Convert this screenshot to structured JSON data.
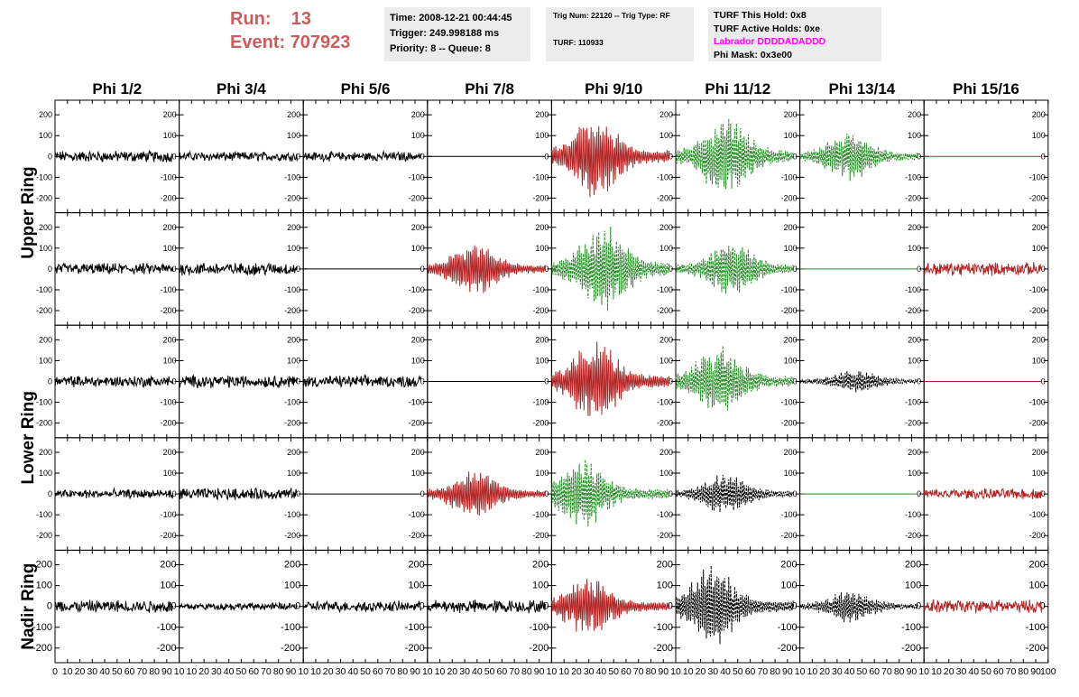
{
  "run_label": "Run:",
  "run_value": "13",
  "event_label": "Event:",
  "event_value": "707923",
  "time_info": {
    "time": "Time: 2008-12-21 00:44:45",
    "trigger": "Trigger: 249.998188 ms",
    "priority": "Priority: 8 -- Queue: 8"
  },
  "trig_info": {
    "trig": "Trig Num: 22120 -- Trig Type: RF",
    "turf": "TURF: 110933"
  },
  "turf_info": {
    "hold": "TURF This Hold: 0x8",
    "active": "TURF Active Holds: 0xe",
    "labrador": "Labrador DDDDADADDD",
    "phimask": "Phi Mask: 0x3e00"
  },
  "colors": {
    "title": "#cd5c5c",
    "labrador": "#ff00ff",
    "black": "#000000",
    "red": "#b22222",
    "green": "#228b22"
  },
  "chart_data": {
    "type": "line",
    "columns": [
      "Phi 1/2",
      "Phi 3/4",
      "Phi 5/6",
      "Phi 7/8",
      "Phi 9/10",
      "Phi 11/12",
      "Phi 13/14",
      "Phi 15/16"
    ],
    "rows": [
      "Upper Ring",
      "Upper Ring",
      "Lower Ring",
      "Lower Ring",
      "Nadir Ring"
    ],
    "row_labels": [
      {
        "text": "Upper Ring"
      },
      {
        "text": "Lower Ring"
      },
      {
        "text": "Nadir Ring"
      }
    ],
    "xlim": [
      0,
      100
    ],
    "ylim": [
      -270,
      270
    ],
    "y_ticks": [
      {
        "v": 200,
        "label": "200"
      },
      {
        "v": 100,
        "label": "100"
      },
      {
        "v": 0,
        "label": "0"
      },
      {
        "v": -100,
        "label": "-100"
      },
      {
        "v": -200,
        "label": "-200"
      }
    ],
    "x_ticks": [
      "0",
      "10",
      "20",
      "30",
      "40",
      "50",
      "60",
      "70",
      "80",
      "90",
      "10"
    ],
    "x_ticks_last": [
      "0",
      "10",
      "20",
      "30",
      "40",
      "50",
      "60",
      "70",
      "80",
      "90",
      "100"
    ],
    "panels": [
      [
        {
          "c": "black",
          "a": 22,
          "s": "n"
        },
        {
          "c": "black",
          "a": 18,
          "s": "n"
        },
        {
          "c": "black",
          "a": 18,
          "s": "n"
        },
        {
          "c": "black",
          "a": 0,
          "s": "flat"
        },
        {
          "c": "red",
          "a": 210,
          "s": "p",
          "pk": 35
        },
        {
          "c": "green",
          "a": 200,
          "s": "d",
          "pk": 40
        },
        {
          "c": "green",
          "a": 120,
          "s": "d",
          "pk": 40
        },
        {
          "c": "red",
          "a": 0,
          "s": "flat"
        }
      ],
      [
        {
          "c": "black",
          "a": 22,
          "s": "n"
        },
        {
          "c": "black",
          "a": 24,
          "s": "n"
        },
        {
          "c": "black",
          "a": 0,
          "s": "flat"
        },
        {
          "c": "red",
          "a": 130,
          "s": "p",
          "pk": 38
        },
        {
          "c": "green",
          "a": 220,
          "s": "d",
          "pk": 42
        },
        {
          "c": "green",
          "a": 140,
          "s": "d",
          "pk": 45
        },
        {
          "c": "green",
          "a": 0,
          "s": "flat"
        },
        {
          "c": "red",
          "a": 25,
          "s": "n"
        }
      ],
      [
        {
          "c": "black",
          "a": 22,
          "s": "n"
        },
        {
          "c": "black",
          "a": 24,
          "s": "n"
        },
        {
          "c": "black",
          "a": 22,
          "s": "n"
        },
        {
          "c": "black",
          "a": 0,
          "s": "flat"
        },
        {
          "c": "red",
          "a": 200,
          "s": "p",
          "pk": 35
        },
        {
          "c": "green",
          "a": 180,
          "s": "d",
          "pk": 35
        },
        {
          "c": "black",
          "a": 60,
          "s": "d",
          "pk": 45
        },
        {
          "c": "red",
          "a": 0,
          "s": "flat"
        }
      ],
      [
        {
          "c": "black",
          "a": 18,
          "s": "n"
        },
        {
          "c": "black",
          "a": 22,
          "s": "n"
        },
        {
          "c": "black",
          "a": 0,
          "s": "flat"
        },
        {
          "c": "red",
          "a": 120,
          "s": "p",
          "pk": 38
        },
        {
          "c": "green",
          "a": 170,
          "s": "d",
          "pk": 25
        },
        {
          "c": "black",
          "a": 100,
          "s": "d",
          "pk": 40
        },
        {
          "c": "green",
          "a": 0,
          "s": "flat"
        },
        {
          "c": "red",
          "a": 20,
          "s": "n"
        }
      ],
      [
        {
          "c": "black",
          "a": 25,
          "s": "n"
        },
        {
          "c": "black",
          "a": 14,
          "s": "n"
        },
        {
          "c": "black",
          "a": 20,
          "s": "n"
        },
        {
          "c": "black",
          "a": 25,
          "s": "n"
        },
        {
          "c": "red",
          "a": 150,
          "s": "p",
          "pk": 30
        },
        {
          "c": "black",
          "a": 200,
          "s": "d",
          "pk": 30
        },
        {
          "c": "black",
          "a": 80,
          "s": "d",
          "pk": 40
        },
        {
          "c": "red",
          "a": 25,
          "s": "n"
        }
      ]
    ]
  }
}
